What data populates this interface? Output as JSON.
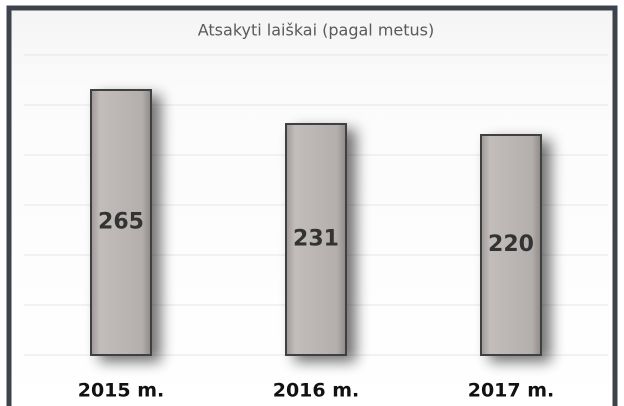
{
  "chart_data": {
    "type": "bar",
    "title": "Atsakyti laiškai (pagal metus)",
    "categories": [
      "2015 m.",
      "2016 m.",
      "2017 m."
    ],
    "values": [
      265,
      231,
      220
    ],
    "color": "#b3aeac",
    "ylim": [
      0,
      300
    ],
    "yticks": [
      0,
      50,
      100,
      150,
      200,
      250,
      300
    ],
    "grid": true
  }
}
